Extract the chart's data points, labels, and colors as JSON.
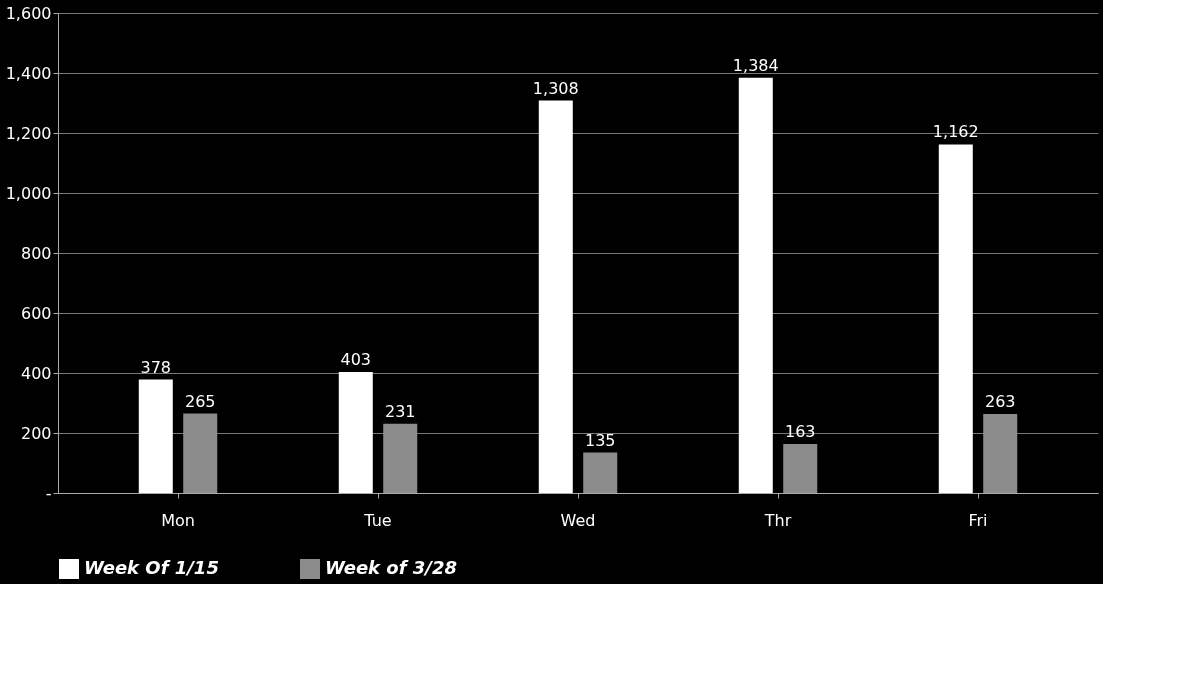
{
  "chart_data": {
    "type": "bar",
    "categories": [
      "Mon",
      "Tue",
      "Wed",
      "Thr",
      "Fri"
    ],
    "series": [
      {
        "name": "Week Of 1/15",
        "color": "#ffffff",
        "values": [
          378,
          403,
          1308,
          1384,
          1162
        ],
        "value_labels": [
          "378",
          "403",
          "1,308",
          "1,384",
          "1,162"
        ]
      },
      {
        "name": "Week of 3/28",
        "color": "#8c8c8c",
        "values": [
          265,
          231,
          135,
          163,
          263
        ],
        "value_labels": [
          "265",
          "231",
          "135",
          "163",
          "263"
        ]
      }
    ],
    "ylim": [
      0,
      1600
    ],
    "yticks": [
      {
        "value": 0,
        "label": "-"
      },
      200,
      400,
      600,
      800,
      {
        "value": 1000,
        "label": "1,000"
      },
      {
        "value": 1200,
        "label": "1,200"
      },
      {
        "value": 1400,
        "label": "1,400"
      },
      {
        "value": 1600,
        "label": "1,600"
      }
    ],
    "grid": "y",
    "legend": "bottom left"
  }
}
